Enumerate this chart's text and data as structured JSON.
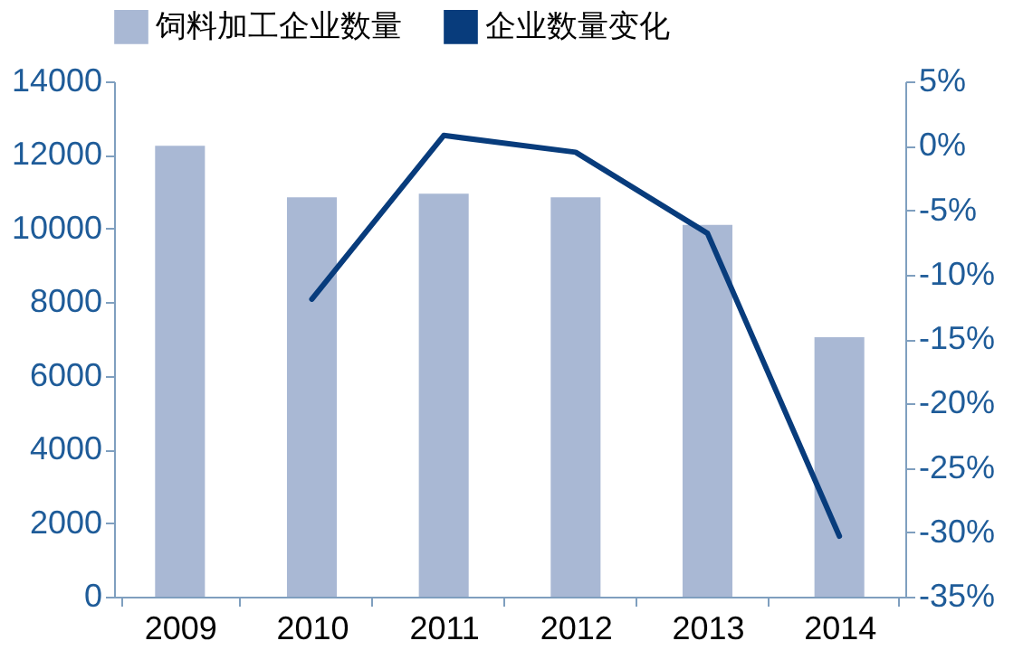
{
  "chart_data": {
    "type": "bar",
    "categories": [
      "2009",
      "2010",
      "2011",
      "2012",
      "2013",
      "2014"
    ],
    "series": [
      {
        "name": "饲料加工企业数量",
        "color": "#a9b8d4",
        "values": [
          12250,
          10850,
          10950,
          10850,
          10100,
          7050
        ]
      },
      {
        "name": "企业数量变化",
        "type": "line",
        "axis": "y2",
        "color": "#083c7c",
        "values": [
          null,
          -11.9,
          0.8,
          -0.5,
          -6.8,
          -30.3
        ]
      }
    ],
    "ylim": [
      0,
      14000
    ],
    "yticks": [
      0,
      2000,
      4000,
      6000,
      8000,
      10000,
      12000,
      14000
    ],
    "y2lim": [
      -35,
      5
    ],
    "y2ticks": [
      {
        "value": -35,
        "label": "-35%"
      },
      {
        "value": -30,
        "label": "-30%"
      },
      {
        "value": -25,
        "label": "-25%"
      },
      {
        "value": -20,
        "label": "-20%"
      },
      {
        "value": -15,
        "label": "-15%"
      },
      {
        "value": -10,
        "label": "-10%"
      },
      {
        "value": -5,
        "label": "-5%"
      },
      {
        "value": 0,
        "label": "0%"
      },
      {
        "value": 5,
        "label": "5%"
      }
    ],
    "legend": "top",
    "grid": false
  }
}
